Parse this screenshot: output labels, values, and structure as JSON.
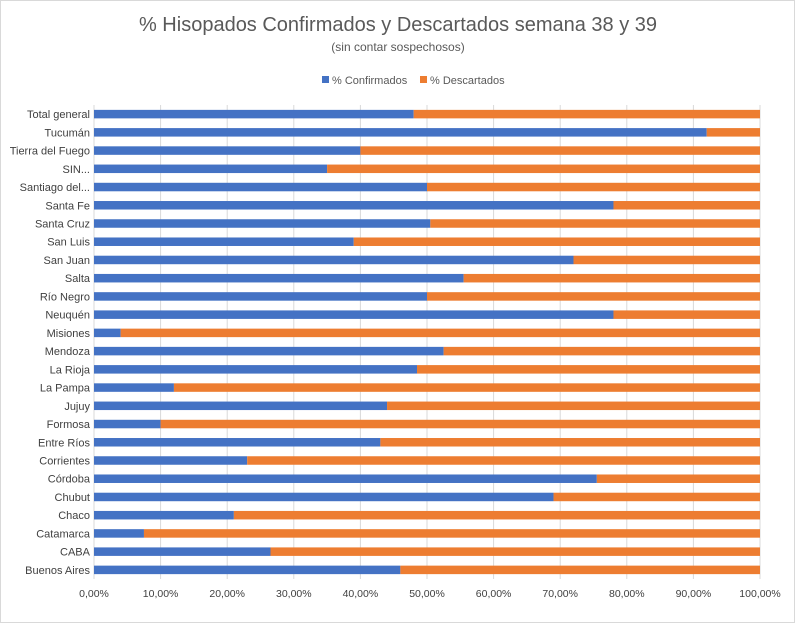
{
  "chart_data": {
    "type": "bar",
    "orientation": "horizontal",
    "stacked": "percent",
    "title": "% Hisopados Confirmados y Descartados semana 38 y 39",
    "subtitle": "(sin contar sospechosos)",
    "categories": [
      "Total general",
      "Tucumán",
      "Tierra del Fuego",
      "SIN...",
      "Santiago del...",
      "Santa Fe",
      "Santa Cruz",
      "San Luis",
      "San Juan",
      "Salta",
      "Río Negro",
      "Neuquén",
      "Misiones",
      "Mendoza",
      "La Rioja",
      "La Pampa",
      "Jujuy",
      "Formosa",
      "Entre Ríos",
      "Corrientes",
      "Córdoba",
      "Chubut",
      "Chaco",
      "Catamarca",
      "CABA",
      "Buenos Aires"
    ],
    "series": [
      {
        "name": "% Confirmados",
        "color": "#4472c4",
        "values": [
          0.48,
          0.92,
          0.4,
          0.35,
          0.5,
          0.78,
          0.505,
          0.39,
          0.72,
          0.555,
          0.5,
          0.78,
          0.04,
          0.525,
          0.485,
          0.12,
          0.44,
          0.1,
          0.43,
          0.23,
          0.755,
          0.69,
          0.21,
          0.075,
          0.265,
          0.46
        ]
      },
      {
        "name": "% Descartados",
        "color": "#ed7d31",
        "values": [
          0.52,
          0.08,
          0.6,
          0.65,
          0.5,
          0.22,
          0.495,
          0.61,
          0.28,
          0.445,
          0.5,
          0.22,
          0.96,
          0.475,
          0.515,
          0.88,
          0.56,
          0.9,
          0.57,
          0.77,
          0.245,
          0.31,
          0.79,
          0.925,
          0.735,
          0.54
        ]
      }
    ],
    "xlim": [
      0,
      1
    ],
    "xticks": [
      "0,00%",
      "10,00%",
      "20,00%",
      "30,00%",
      "40,00%",
      "50,00%",
      "60,00%",
      "70,00%",
      "80,00%",
      "90,00%",
      "100,00%"
    ],
    "grid": true,
    "legend_position": "top"
  }
}
